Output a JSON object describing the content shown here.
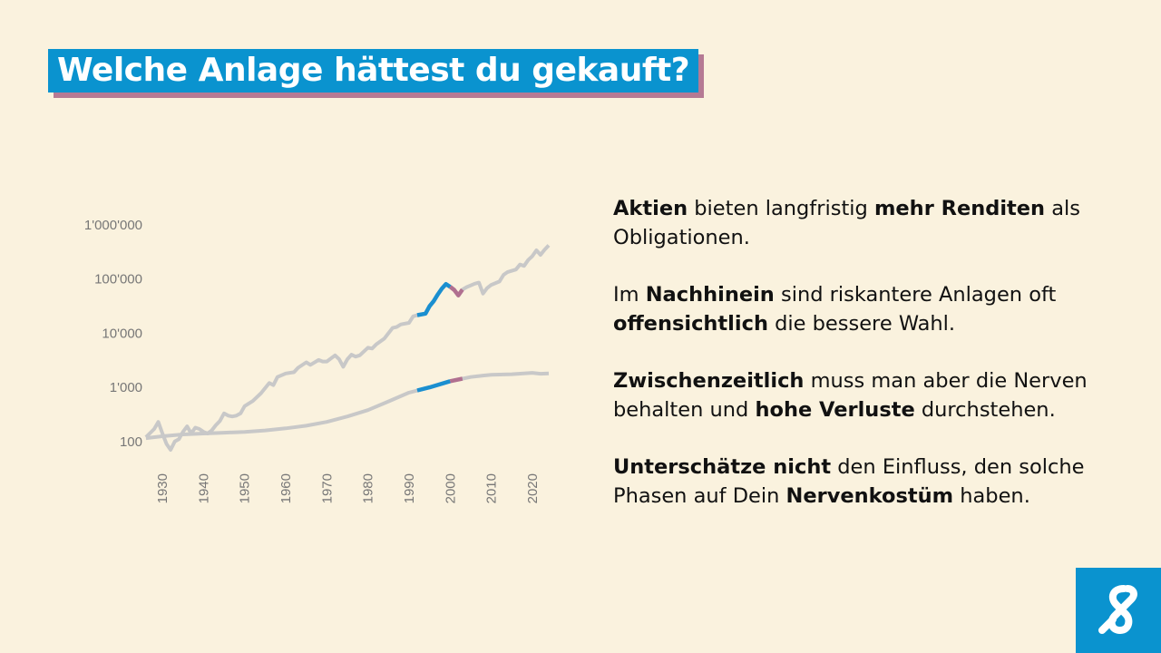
{
  "header": {
    "title": "Welche Anlage hättest du gekauft?"
  },
  "colors": {
    "accent": "#0a93cf",
    "shadow": "#b57a94",
    "background": "#faf2de",
    "line": "#c8c8c8",
    "highlight_up": "#1a8fd0",
    "highlight_down": "#b07090"
  },
  "paragraphs": [
    {
      "parts": [
        {
          "bold": true,
          "text": "Aktien"
        },
        {
          "bold": false,
          "text": " bieten langfristig "
        },
        {
          "bold": true,
          "text": "mehr Renditen"
        },
        {
          "bold": false,
          "text": " als Obligationen."
        }
      ]
    },
    {
      "parts": [
        {
          "bold": false,
          "text": "Im "
        },
        {
          "bold": true,
          "text": "Nachhinein"
        },
        {
          "bold": false,
          "text": " sind riskantere Anlagen oft "
        },
        {
          "bold": true,
          "text": "offensichtlich"
        },
        {
          "bold": false,
          "text": " die bessere Wahl."
        }
      ]
    },
    {
      "parts": [
        {
          "bold": true,
          "text": "Zwischenzeitlich"
        },
        {
          "bold": false,
          "text": " muss man aber die Nerven behalten und "
        },
        {
          "bold": true,
          "text": "hohe Verluste"
        },
        {
          "bold": false,
          "text": " durchstehen."
        }
      ]
    },
    {
      "parts": [
        {
          "bold": true,
          "text": "Unterschätze nicht"
        },
        {
          "bold": false,
          "text": " den Einfluss, den solche Phasen auf Dein "
        },
        {
          "bold": true,
          "text": "Nervenkostüm"
        },
        {
          "bold": false,
          "text": " haben."
        }
      ]
    }
  ],
  "logo": {
    "icon": "ampersand-logo-icon"
  },
  "chart_data": {
    "type": "line",
    "y_scale": "log",
    "ylim": [
      60,
      1000000
    ],
    "xlim": [
      1928,
      2024
    ],
    "y_ticks": [
      100,
      1000,
      10000,
      100000,
      1000000
    ],
    "y_tick_labels": [
      "100",
      "1'000",
      "10'000",
      "100'000",
      "1'000'000"
    ],
    "x_ticks": [
      1930,
      1940,
      1950,
      1960,
      1970,
      1980,
      1990,
      2000,
      2010,
      2020
    ],
    "x_tick_labels": [
      "1930",
      "1940",
      "1950",
      "1960",
      "1970",
      "1980",
      "1990",
      "2000",
      "2010",
      "2020"
    ],
    "grid": false,
    "highlight_ranges": [
      {
        "from": 1992,
        "to": 2000,
        "color": "#1a8fd0"
      },
      {
        "from": 2000,
        "to": 2003,
        "color": "#b07090"
      }
    ],
    "series": [
      {
        "x": [
          1926,
          1928,
          1929,
          1930,
          1931,
          1932,
          1933,
          1934,
          1935,
          1936,
          1937,
          1938,
          1939,
          1940,
          1941,
          1942,
          1943,
          1944,
          1945,
          1946,
          1947,
          1948,
          1949,
          1950,
          1952,
          1954,
          1956,
          1957,
          1958,
          1960,
          1962,
          1963,
          1965,
          1966,
          1968,
          1969,
          1970,
          1972,
          1973,
          1974,
          1975,
          1976,
          1977,
          1978,
          1980,
          1981,
          1982,
          1984,
          1985,
          1986,
          1987,
          1988,
          1990,
          1991,
          1992,
          1994,
          1995,
          1996,
          1997,
          1998,
          1999,
          2000,
          2001,
          2002,
          2003,
          2004,
          2006,
          2007,
          2008,
          2009,
          2010,
          2012,
          2013,
          2014,
          2016,
          2017,
          2018,
          2019,
          2020,
          2021,
          2022,
          2023,
          2024
        ],
        "y": [
          120,
          170,
          230,
          140,
          90,
          70,
          100,
          110,
          150,
          190,
          140,
          180,
          170,
          150,
          140,
          160,
          200,
          240,
          330,
          300,
          290,
          300,
          330,
          450,
          560,
          780,
          1200,
          1100,
          1550,
          1800,
          1900,
          2300,
          2900,
          2600,
          3200,
          3000,
          3000,
          3900,
          3300,
          2400,
          3300,
          4000,
          3700,
          3900,
          5400,
          5200,
          6200,
          8000,
          10000,
          12500,
          13000,
          14500,
          15500,
          20500,
          21500,
          23000,
          31500,
          39000,
          52000,
          67000,
          81000,
          72000,
          63000,
          50000,
          64000,
          71000,
          82000,
          86000,
          54000,
          68000,
          78000,
          90000,
          120000,
          135000,
          150000,
          185000,
          175000,
          225000,
          265000,
          340000,
          280000,
          350000,
          420000
        ]
      },
      {
        "x": [
          1926,
          1930,
          1935,
          1940,
          1945,
          1950,
          1955,
          1960,
          1965,
          1970,
          1975,
          1980,
          1985,
          1990,
          1995,
          2000,
          2005,
          2008,
          2010,
          2015,
          2020,
          2022,
          2024
        ],
        "y": [
          115,
          125,
          135,
          140,
          145,
          150,
          160,
          175,
          195,
          230,
          290,
          380,
          550,
          800,
          1000,
          1300,
          1550,
          1650,
          1700,
          1750,
          1850,
          1780,
          1800
        ]
      }
    ]
  }
}
